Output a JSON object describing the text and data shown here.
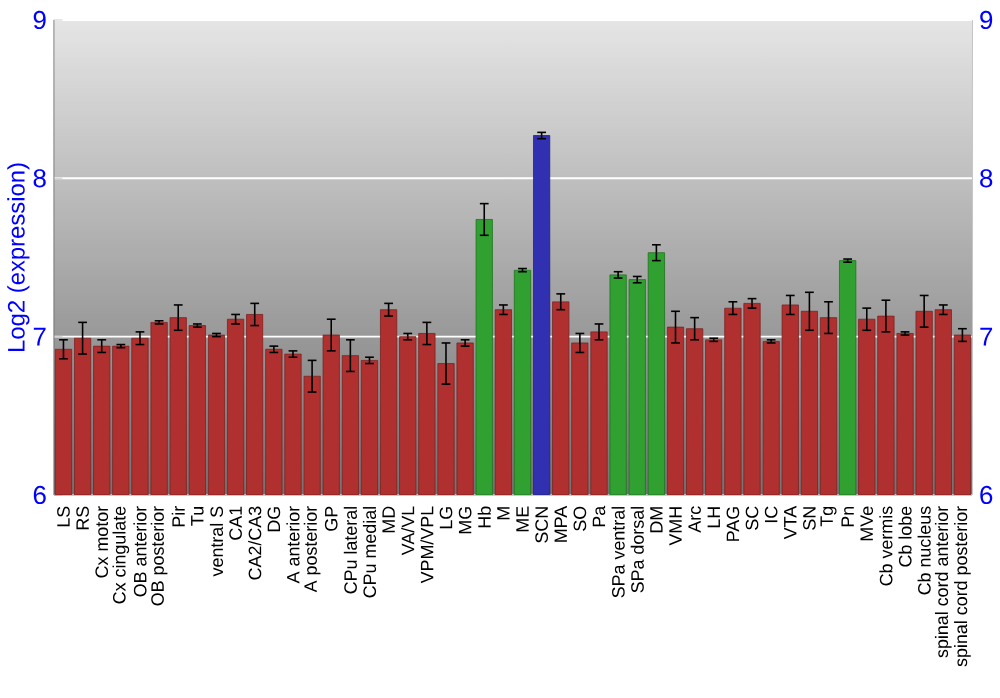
{
  "chart_data": {
    "type": "bar",
    "ylabel": "Log2 (expression)",
    "categories": [
      "LS",
      "RS",
      "Cx motor",
      "Cx cingulate",
      "OB anterior",
      "OB posterior",
      "Pir",
      "Tu",
      "ventral S",
      "CA1",
      "CA2/CA3",
      "DG",
      "A anterior",
      "A posterior",
      "GP",
      "CPu lateral",
      "CPu medial",
      "MD",
      "VA/VL",
      "VPM/VPL",
      "LG",
      "MG",
      "Hb",
      "M",
      "ME",
      "SCN",
      "MPA",
      "SO",
      "Pa",
      "SPa ventral",
      "SPa dorsal",
      "DM",
      "VMH",
      "Arc",
      "LH",
      "PAG",
      "SC",
      "IC",
      "VTA",
      "SN",
      "Tg",
      "Pn",
      "MVe",
      "Cb vermis",
      "Cb lobe",
      "Cb nucleus",
      "spinal cord anterior",
      "spinal cord posterior"
    ],
    "values": [
      6.92,
      6.99,
      6.94,
      6.94,
      6.99,
      7.09,
      7.12,
      7.07,
      7.01,
      7.11,
      7.14,
      6.92,
      6.89,
      6.75,
      7.01,
      6.88,
      6.85,
      7.17,
      7.0,
      7.02,
      6.83,
      6.96,
      7.74,
      7.17,
      7.42,
      8.27,
      7.22,
      6.96,
      7.03,
      7.39,
      7.36,
      7.53,
      7.06,
      7.05,
      6.98,
      7.18,
      7.21,
      6.97,
      7.2,
      7.16,
      7.12,
      7.48,
      7.11,
      7.13,
      7.02,
      7.16,
      7.17,
      7.01
    ],
    "errors": [
      0.06,
      0.1,
      0.04,
      0.01,
      0.04,
      0.01,
      0.08,
      0.01,
      0.01,
      0.03,
      0.07,
      0.02,
      0.02,
      0.1,
      0.1,
      0.1,
      0.02,
      0.04,
      0.02,
      0.07,
      0.13,
      0.02,
      0.1,
      0.03,
      0.01,
      0.02,
      0.05,
      0.06,
      0.05,
      0.02,
      0.02,
      0.05,
      0.1,
      0.07,
      0.01,
      0.04,
      0.03,
      0.01,
      0.06,
      0.12,
      0.1,
      0.01,
      0.07,
      0.1,
      0.01,
      0.1,
      0.03,
      0.04
    ],
    "colors": [
      "#b03030",
      "#b03030",
      "#b03030",
      "#b03030",
      "#b03030",
      "#b03030",
      "#b03030",
      "#b03030",
      "#b03030",
      "#b03030",
      "#b03030",
      "#b03030",
      "#b03030",
      "#b03030",
      "#b03030",
      "#b03030",
      "#b03030",
      "#b03030",
      "#b03030",
      "#b03030",
      "#b03030",
      "#b03030",
      "#30a030",
      "#b03030",
      "#30a030",
      "#3030b0",
      "#b03030",
      "#b03030",
      "#b03030",
      "#30a030",
      "#30a030",
      "#30a030",
      "#b03030",
      "#b03030",
      "#b03030",
      "#b03030",
      "#b03030",
      "#b03030",
      "#b03030",
      "#b03030",
      "#b03030",
      "#30a030",
      "#b03030",
      "#b03030",
      "#b03030",
      "#b03030",
      "#b03030",
      "#b03030"
    ],
    "ylim": [
      6,
      9
    ],
    "yticks": [
      6,
      7,
      8,
      9
    ],
    "y2lim": [
      6,
      9
    ],
    "y2ticks": [
      6,
      7,
      8,
      9
    ],
    "grid": "y"
  }
}
